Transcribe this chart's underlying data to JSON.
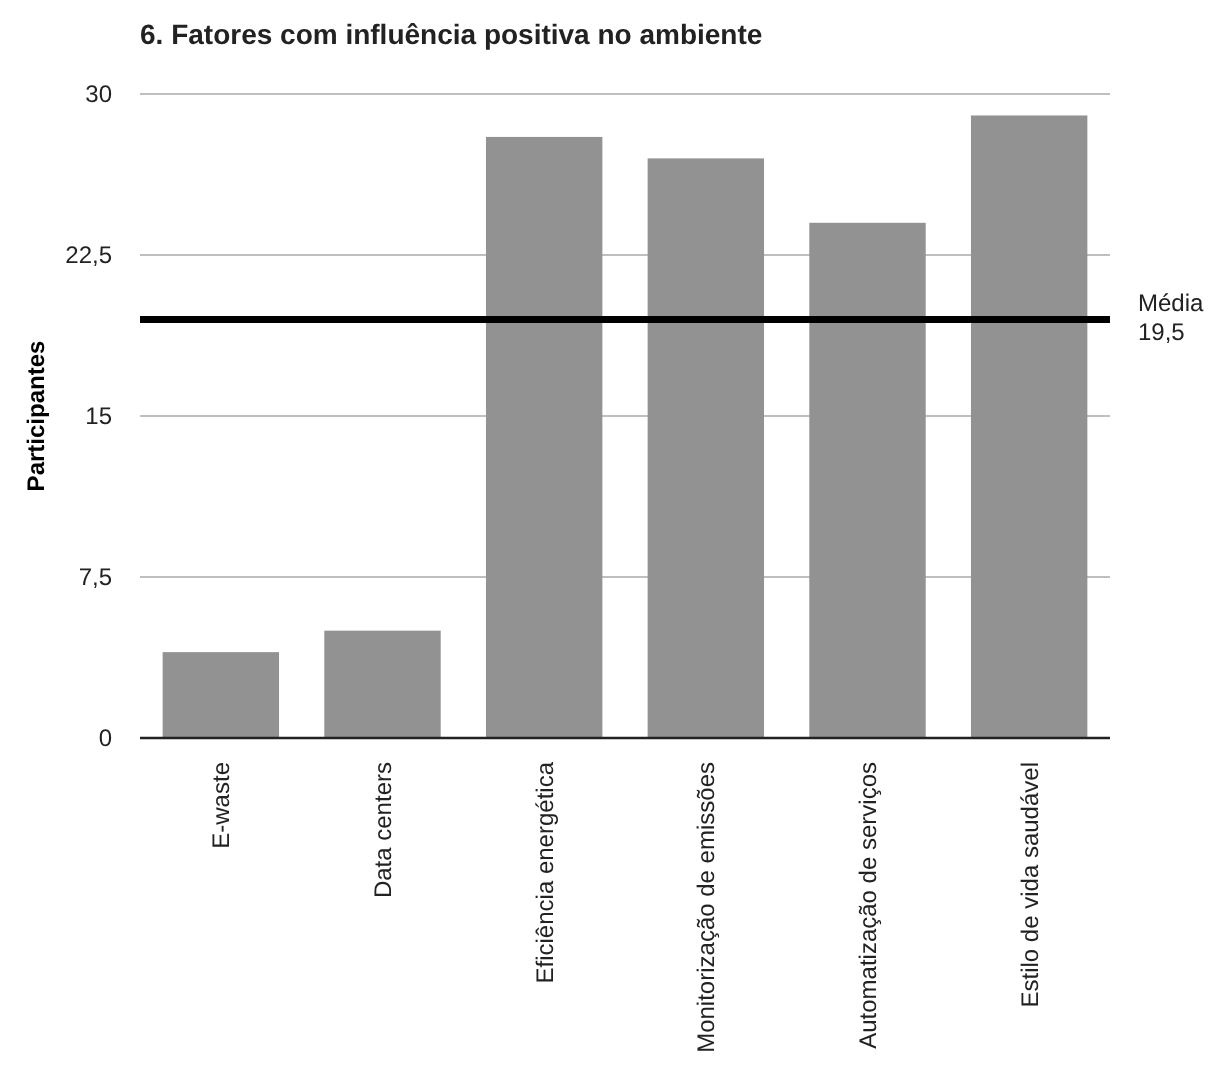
{
  "chart_data": {
    "type": "bar",
    "title": "6. Fatores com influência positiva no ambiente",
    "ylabel": "Participantes",
    "categories": [
      "E-waste",
      "Data centers",
      "Eficiência energética",
      "Monitorização de emissões",
      "Automatização de serviços",
      "Estilo de vida saudável"
    ],
    "values": [
      4,
      5,
      28,
      27,
      24,
      29
    ],
    "color": "#929292",
    "ylim": [
      0,
      30
    ],
    "yticks": [
      0,
      {
        "value": 7.5,
        "label": "7,5"
      },
      15,
      {
        "value": 22.5,
        "label": "22,5"
      },
      30
    ],
    "grid": "y",
    "ref_lines": [
      {
        "axis": "y",
        "value": 19.5,
        "label": "Média 19,5",
        "color": "#000000"
      }
    ]
  }
}
